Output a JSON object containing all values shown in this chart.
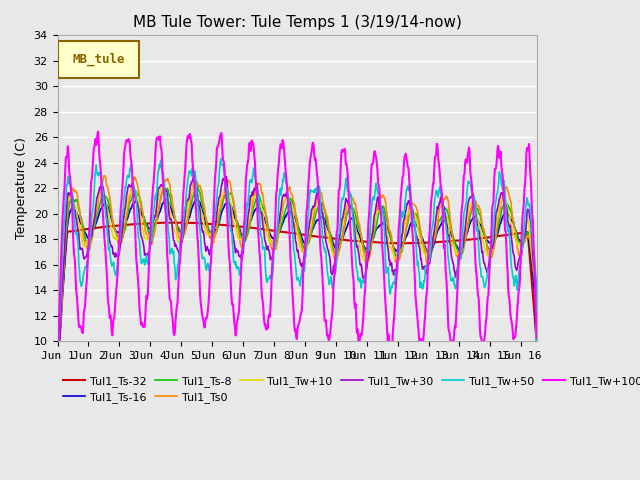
{
  "title": "MB Tule Tower: Tule Temps 1 (3/19/14-now)",
  "ylabel": "Temperature (C)",
  "xlabel": "",
  "ylim": [
    10,
    34
  ],
  "yticks": [
    10,
    12,
    14,
    16,
    18,
    20,
    22,
    24,
    26,
    28,
    30,
    32,
    34
  ],
  "xlim": [
    0,
    15.5
  ],
  "xtick_labels": [
    "Jun 1",
    "Jun 2",
    "Jun 3",
    "Jun 4",
    "Jun 5",
    "Jun 6",
    "Jun 7",
    "Jun 8",
    "Jun 9",
    "Jun 10",
    "Jun 11",
    "Jun 12",
    "Jun 13",
    "Jun 14",
    "Jun 15",
    "Jun 16"
  ],
  "xtick_positions": [
    0,
    1,
    2,
    3,
    4,
    5,
    6,
    7,
    8,
    9,
    10,
    11,
    12,
    13,
    14,
    15
  ],
  "bg_color": "#e8e8e8",
  "plot_bg_color": "#e8e8e8",
  "grid_color": "#ffffff",
  "series": {
    "Tul1_Ts-32": {
      "color": "#cc0000",
      "lw": 1.5,
      "zorder": 3
    },
    "Tul1_Ts-16": {
      "color": "#0000cc",
      "lw": 1.2,
      "zorder": 3
    },
    "Tul1_Ts-8": {
      "color": "#00cc00",
      "lw": 1.2,
      "zorder": 3
    },
    "Tul1_Ts0": {
      "color": "#ff8800",
      "lw": 1.2,
      "zorder": 3
    },
    "Tul1_Tw+10": {
      "color": "#dddd00",
      "lw": 1.2,
      "zorder": 3
    },
    "Tul1_Tw+30": {
      "color": "#9900cc",
      "lw": 1.2,
      "zorder": 3
    },
    "Tul1_Tw+50": {
      "color": "#00cccc",
      "lw": 1.2,
      "zorder": 3
    },
    "Tul1_Tw+100": {
      "color": "#ff00ff",
      "lw": 1.5,
      "zorder": 4
    }
  },
  "legend_label": "MB_tule",
  "legend_bg": "#ffffcc",
  "legend_edge": "#886600"
}
